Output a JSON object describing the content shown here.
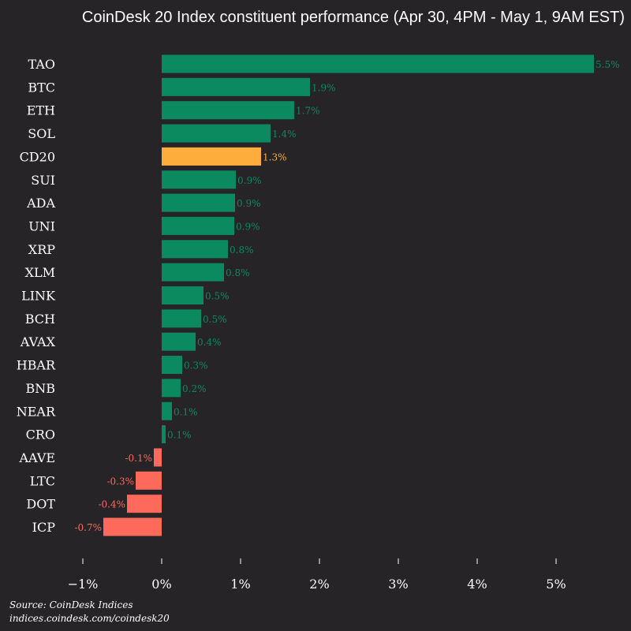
{
  "chart_data": {
    "type": "bar",
    "orientation": "horizontal",
    "title": "CoinDesk 20 Index constituent performance (Apr 30, 4PM - May 1, 9AM EST)",
    "categories": [
      "TAO",
      "BTC",
      "ETH",
      "SOL",
      "CD20",
      "SUI",
      "ADA",
      "UNI",
      "XRP",
      "XLM",
      "LINK",
      "BCH",
      "AVAX",
      "HBAR",
      "BNB",
      "NEAR",
      "CRO",
      "AAVE",
      "LTC",
      "DOT",
      "ICP"
    ],
    "values": [
      5.48,
      1.88,
      1.68,
      1.38,
      1.26,
      0.94,
      0.93,
      0.92,
      0.84,
      0.79,
      0.53,
      0.5,
      0.43,
      0.26,
      0.24,
      0.13,
      0.05,
      -0.1,
      -0.33,
      -0.44,
      -0.74
    ],
    "value_labels": [
      "5.5%",
      "1.9%",
      "1.7%",
      "1.4%",
      "1.3%",
      "0.9%",
      "0.9%",
      "0.9%",
      "0.8%",
      "0.8%",
      "0.5%",
      "0.5%",
      "0.4%",
      "0.3%",
      "0.2%",
      "0.1%",
      "0.1%",
      "-0.1%",
      "-0.3%",
      "-0.4%",
      "-0.7%"
    ],
    "highlight_category": "CD20",
    "xlim": [
      -1.05,
      5.95
    ],
    "x_ticks": [
      -1,
      0,
      1,
      2,
      3,
      4,
      5
    ],
    "x_tick_labels": [
      "−1%",
      "0%",
      "1%",
      "2%",
      "3%",
      "4%",
      "5%"
    ],
    "grid": false,
    "legend": "none",
    "colors": {
      "positive": "#0b8a5f",
      "negative": "#fd6a5c",
      "highlight": "#fdad3c",
      "positive_label": "#0b8a5f",
      "negative_label": "#fd6a5c",
      "highlight_label": "#fdad3c",
      "text": "#ffffff",
      "background": "#262427"
    }
  },
  "source": {
    "line1": "Source: CoinDesk Indices",
    "line2": "indices.coindesk.com/coindesk20"
  }
}
